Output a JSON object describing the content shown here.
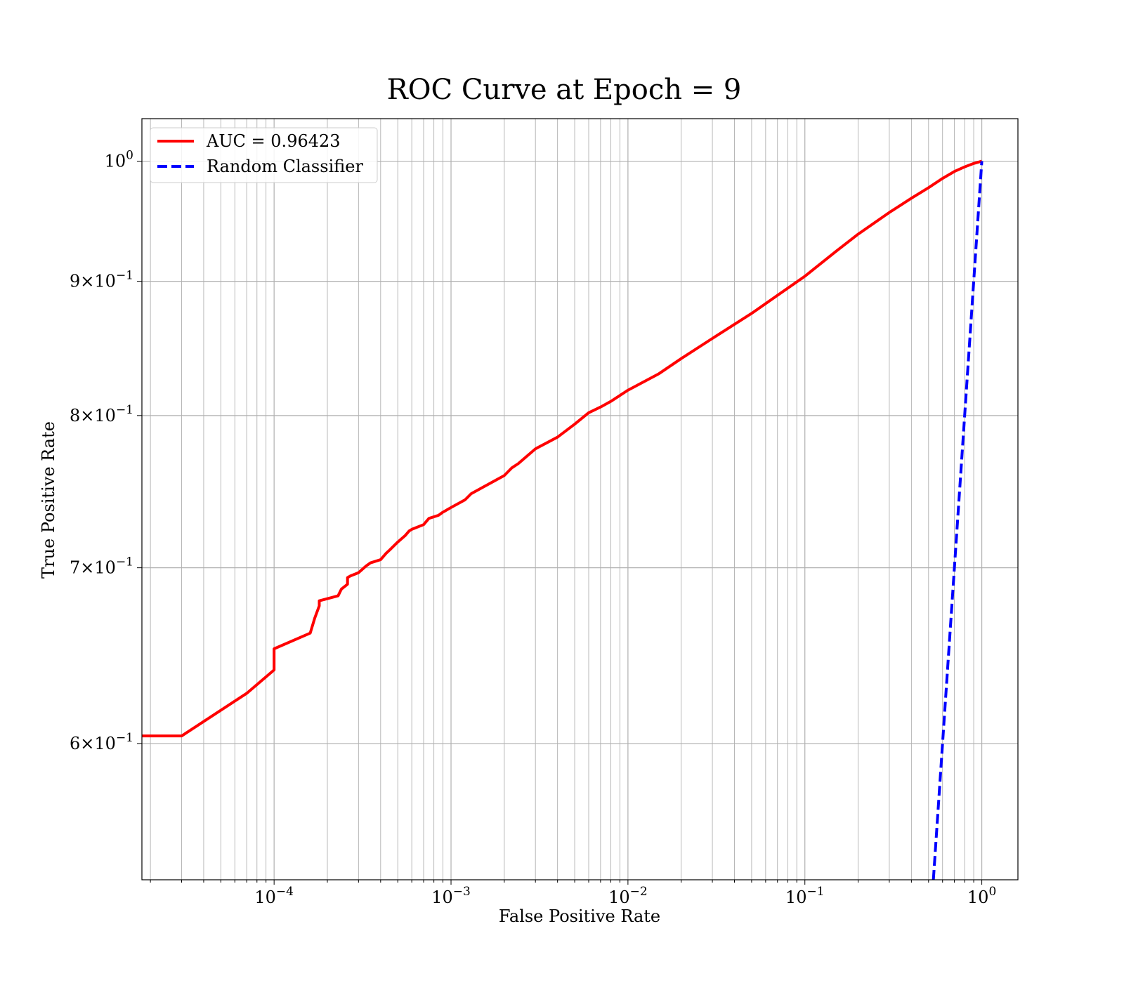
{
  "chart_data": {
    "type": "line",
    "title": "ROC Curve at Epoch = 9",
    "xlabel": "False Positive Rate",
    "ylabel": "True Positive Rate",
    "xscale": "log",
    "yscale": "log",
    "xlim": [
      1.79e-05,
      1.6
    ],
    "ylim": [
      0.5324,
      1.038
    ],
    "grid": true,
    "grid_minor": true,
    "legend_position": "upper-left",
    "colors": {
      "roc": "#ff0000",
      "random": "#0000ff"
    },
    "x_ticks": [
      {
        "value": 0.0001,
        "base": "10",
        "exp": "−4"
      },
      {
        "value": 0.001,
        "base": "10",
        "exp": "−3"
      },
      {
        "value": 0.01,
        "base": "10",
        "exp": "−2"
      },
      {
        "value": 0.1,
        "base": "10",
        "exp": "−1"
      },
      {
        "value": 1,
        "base": "10",
        "exp": "0"
      }
    ],
    "y_ticks": [
      {
        "value": 1.0,
        "mantissa": "",
        "exp": "0"
      },
      {
        "value": 0.9,
        "mantissa": "9",
        "exp": "−1"
      },
      {
        "value": 0.8,
        "mantissa": "8",
        "exp": "−1"
      },
      {
        "value": 0.7,
        "mantissa": "7",
        "exp": "−1"
      },
      {
        "value": 0.6,
        "mantissa": "6",
        "exp": "−1"
      }
    ],
    "series": [
      {
        "name": "AUC = 0.96423",
        "style": "solid",
        "x": [
          1.79e-05,
          3e-05,
          7e-05,
          0.0001,
          0.0001,
          0.00016,
          0.00017,
          0.00018,
          0.00018,
          0.00023,
          0.00024,
          0.00026,
          0.00026,
          0.00027,
          0.0003,
          0.00033,
          0.00035,
          0.0004,
          0.00043,
          0.00045,
          0.0005,
          0.00055,
          0.00058,
          0.0006,
          0.0007,
          0.00075,
          0.00085,
          0.0009,
          0.001,
          0.0012,
          0.0013,
          0.0015,
          0.002,
          0.0022,
          0.0024,
          0.003,
          0.004,
          0.005,
          0.006,
          0.007,
          0.008,
          0.01,
          0.015,
          0.02,
          0.03,
          0.05,
          0.07,
          0.1,
          0.15,
          0.2,
          0.3,
          0.4,
          0.5,
          0.6,
          0.7,
          0.8,
          0.9,
          1.0
        ],
        "y": [
          0.604,
          0.604,
          0.627,
          0.64,
          0.652,
          0.661,
          0.67,
          0.677,
          0.68,
          0.683,
          0.687,
          0.69,
          0.694,
          0.695,
          0.697,
          0.701,
          0.703,
          0.705,
          0.709,
          0.711,
          0.716,
          0.72,
          0.723,
          0.724,
          0.727,
          0.731,
          0.733,
          0.735,
          0.738,
          0.743,
          0.747,
          0.751,
          0.759,
          0.764,
          0.767,
          0.777,
          0.785,
          0.794,
          0.802,
          0.806,
          0.81,
          0.818,
          0.83,
          0.841,
          0.856,
          0.875,
          0.889,
          0.904,
          0.924,
          0.938,
          0.956,
          0.968,
          0.977,
          0.985,
          0.991,
          0.995,
          0.998,
          1.0
        ]
      },
      {
        "name": "Random Classifier",
        "style": "dashed",
        "x": [
          0.5324,
          1.0
        ],
        "y": [
          0.5324,
          1.0
        ]
      }
    ]
  }
}
